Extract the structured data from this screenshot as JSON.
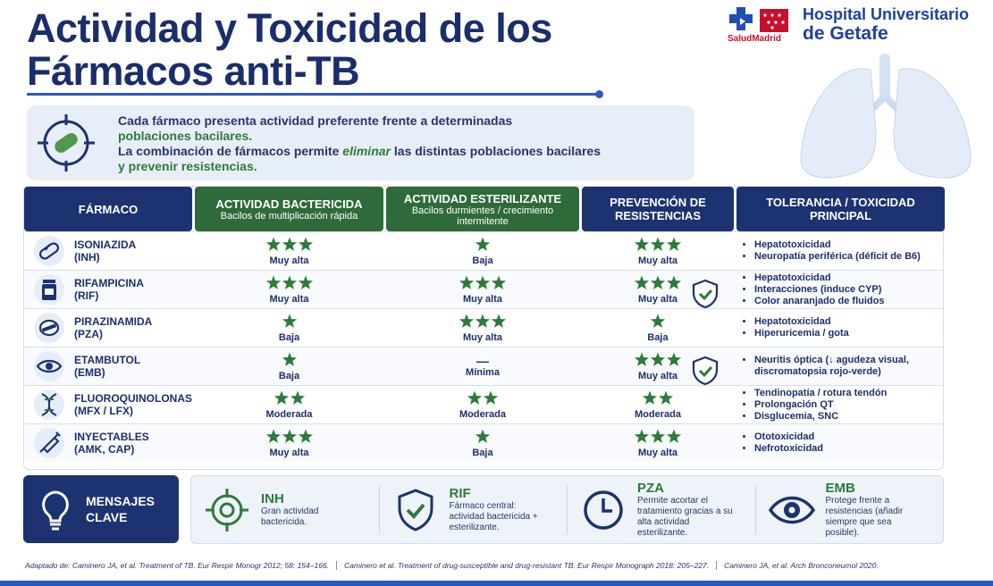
{
  "header": {
    "title_line1": "Actividad y Toxicidad de los",
    "title_line2": "Fármacos anti-TB"
  },
  "logo": {
    "brand": "SaludMadrid",
    "hospital_line1": "Hospital Universitario",
    "hospital_line2": "de Getafe"
  },
  "intro": {
    "text1": "Cada fármaco presenta actividad preferente frente a determinadas",
    "highlight1": "poblaciones bacilares.",
    "text2": "La combinación de fármacos permite",
    "emphasis": "eliminar",
    "text3": "las distintas poblaciones bacilares",
    "highlight2": "y prevenir resistencias."
  },
  "table": {
    "star_color": "#2e7a3c",
    "columns": [
      {
        "title": "FÁRMACO",
        "color": "#1d3270"
      },
      {
        "title": "ACTIVIDAD BACTERICIDA",
        "subtitle": "Bacilos de multiplicación rápida",
        "color": "#2f6b39"
      },
      {
        "title": "ACTIVIDAD ESTERILIZANTE",
        "subtitle": "Bacilos durmientes / crecimiento intermitente",
        "color": "#2f6b39"
      },
      {
        "title": "PREVENCIÓN DE RESISTENCIAS",
        "color": "#1d3270"
      },
      {
        "title": "TOLERANCIA / TOXICIDAD PRINCIPAL",
        "color": "#1d3270"
      }
    ],
    "rows": [
      {
        "drug": "ISONIAZIDA",
        "abbr": "(INH)",
        "bactericidal": {
          "stars": 3,
          "label": "Muy alta"
        },
        "sterilizing": {
          "stars": 1,
          "label": "Baja"
        },
        "resistance_prevention": {
          "stars": 3,
          "label": "Muy alta"
        },
        "toxicity": [
          "Hepatotoxicidad",
          "Neuropatía periférica (déficit de B6)"
        ]
      },
      {
        "drug": "RIFAMPICINA",
        "abbr": "(RIF)",
        "bactericidal": {
          "stars": 3,
          "label": "Muy alta"
        },
        "sterilizing": {
          "stars": 3,
          "label": "Muy alta"
        },
        "resistance_prevention": {
          "stars": 3,
          "label": "Muy alta",
          "check": true
        },
        "toxicity": [
          "Hepatotoxicidad",
          "Interacciones (induce CYP)",
          "Color anaranjado de fluidos"
        ]
      },
      {
        "drug": "PIRAZINAMIDA",
        "abbr": "(PZA)",
        "bactericidal": {
          "stars": 1,
          "label": "Baja"
        },
        "sterilizing": {
          "stars": 3,
          "label": "Muy alta"
        },
        "resistance_prevention": {
          "stars": 1,
          "label": "Baja"
        },
        "toxicity": [
          "Hepatotoxicidad",
          "Hiperuricemia / gota"
        ]
      },
      {
        "drug": "ETAMBUTOL",
        "abbr": "(EMB)",
        "bactericidal": {
          "stars": 1,
          "label": "Baja"
        },
        "sterilizing": {
          "symbol": "—",
          "label": "Mínima"
        },
        "resistance_prevention": {
          "stars": 3,
          "label": "Muy alta",
          "check": true
        },
        "toxicity": [
          "Neuritis óptica (↓ agudeza visual, discromatopsia rojo-verde)"
        ]
      },
      {
        "drug": "FLUOROQUINOLONAS",
        "abbr": "(MFX / LFX)",
        "bactericidal": {
          "stars": 2,
          "label": "Moderada"
        },
        "sterilizing": {
          "stars": 2,
          "label": "Moderada"
        },
        "resistance_prevention": {
          "stars": 2,
          "label": "Moderada"
        },
        "toxicity": [
          "Tendinopatía / rotura tendón",
          "Prolongación QT",
          "Disglucemia, SNC"
        ]
      },
      {
        "drug": "INYECTABLES",
        "abbr": "(AMK, CAP)",
        "bactericidal": {
          "stars": 3,
          "label": "Muy alta"
        },
        "sterilizing": {
          "stars": 1,
          "label": "Baja"
        },
        "resistance_prevention": {
          "stars": 3,
          "label": "Muy alta"
        },
        "toxicity": [
          "Ototoxicidad",
          "Nefrotoxicidad"
        ]
      }
    ]
  },
  "key_messages": {
    "title": "MENSAJES CLAVE",
    "items": [
      {
        "drug": "INH",
        "text": "Gran actividad bactericida."
      },
      {
        "drug": "RIF",
        "text": "Fármaco central: actividad bactericida + esterilizante."
      },
      {
        "drug": "PZA",
        "text": "Permite acortar el tratamiento gracias a su alta actividad esterilizante."
      },
      {
        "drug": "EMB",
        "text": "Protege frente a resistencias (añadir siempre que sea posible)."
      }
    ]
  },
  "references": [
    "Adaptado de: Caminero JA, et al. Treatment of TB. Eur Respir Monogr 2012; 58: 154–166.",
    "Caminero et al. Treatment of drug-susceptible and drug-resistant TB. Eur Respir Monograph 2018: 205–227.",
    "Caminero JA, et al. Arch Bronconeumol 2020."
  ]
}
